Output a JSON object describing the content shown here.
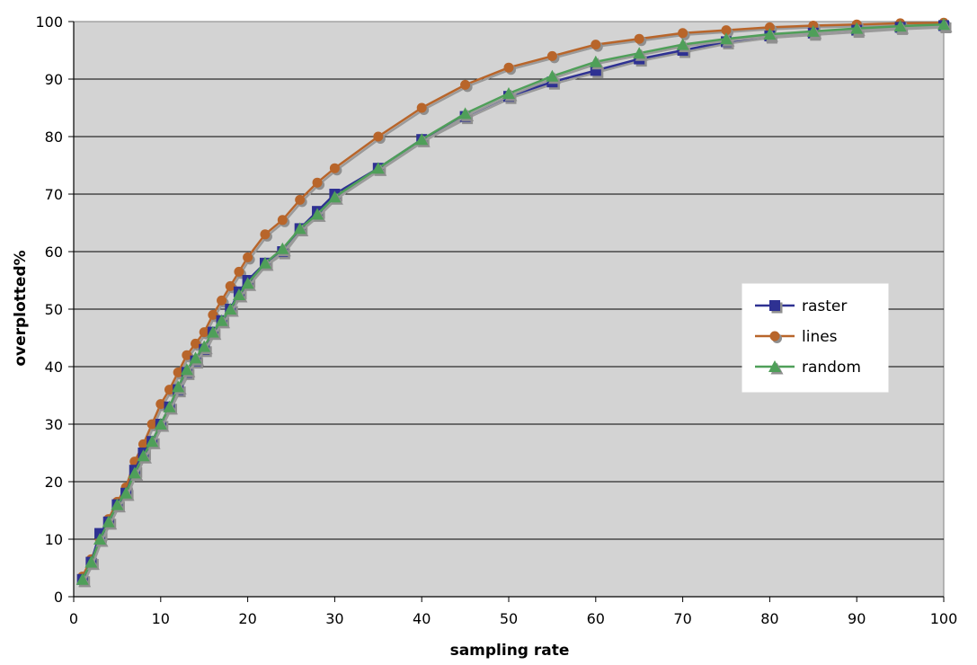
{
  "chart_data": {
    "type": "line",
    "title": "",
    "xlabel": "sampling rate",
    "ylabel": "overplotted%",
    "xlim": [
      0,
      100
    ],
    "ylim": [
      0,
      100
    ],
    "x_ticks": [
      "0",
      "10",
      "20",
      "30",
      "40",
      "50",
      "60",
      "70",
      "80",
      "90",
      "100"
    ],
    "y_ticks": [
      "0",
      "10",
      "20",
      "30",
      "40",
      "50",
      "60",
      "70",
      "80",
      "90",
      "100"
    ],
    "grid": "horizontal",
    "legend_position": "right",
    "series": [
      {
        "name": "raster",
        "color": "#2e3192",
        "marker": "square",
        "x": [
          1,
          2,
          3,
          4,
          5,
          6,
          7,
          8,
          9,
          10,
          11,
          12,
          13,
          14,
          15,
          16,
          17,
          18,
          19,
          20,
          22,
          24,
          26,
          28,
          30,
          35,
          40,
          45,
          50,
          55,
          60,
          65,
          70,
          75,
          80,
          85,
          90,
          95,
          100
        ],
        "y": [
          3,
          6,
          11,
          13,
          16,
          18,
          22,
          25,
          27,
          30,
          33,
          36,
          39,
          41,
          43,
          46,
          48,
          50,
          53,
          55,
          58,
          60,
          64,
          67,
          70,
          74.5,
          79.5,
          83.5,
          87,
          89.5,
          91.5,
          93.5,
          95,
          96.5,
          97.5,
          98,
          98.5,
          99,
          99.3
        ]
      },
      {
        "name": "lines",
        "color": "#b8652a",
        "marker": "circle",
        "x": [
          1,
          2,
          3,
          4,
          5,
          6,
          7,
          8,
          9,
          10,
          11,
          12,
          13,
          14,
          15,
          16,
          17,
          18,
          19,
          20,
          22,
          24,
          26,
          28,
          30,
          35,
          40,
          45,
          50,
          55,
          60,
          65,
          70,
          75,
          80,
          85,
          90,
          95,
          100
        ],
        "y": [
          3.5,
          6.5,
          10,
          13.5,
          16.5,
          19,
          23.5,
          26.5,
          30,
          33.5,
          36,
          39,
          42,
          44,
          46,
          49,
          51.5,
          54,
          56.5,
          59,
          63,
          65.5,
          69,
          72,
          74.5,
          80,
          85,
          89,
          92,
          94,
          96,
          97,
          98,
          98.5,
          99,
          99.3,
          99.5,
          99.7,
          99.8
        ]
      },
      {
        "name": "random",
        "color": "#4f9f59",
        "marker": "triangle",
        "x": [
          1,
          2,
          3,
          4,
          5,
          6,
          7,
          8,
          9,
          10,
          11,
          12,
          13,
          14,
          15,
          16,
          17,
          18,
          19,
          20,
          22,
          24,
          26,
          28,
          30,
          35,
          40,
          45,
          50,
          55,
          60,
          65,
          70,
          75,
          80,
          85,
          90,
          95,
          100
        ],
        "y": [
          3,
          6,
          10,
          13,
          16,
          18,
          21.5,
          24.5,
          27,
          30,
          33,
          36.5,
          39.5,
          41.5,
          43.5,
          46,
          48,
          50,
          52.5,
          54.5,
          58,
          60.5,
          64,
          66.5,
          69.5,
          74.5,
          79.5,
          84,
          87.5,
          90.5,
          93,
          94.5,
          96,
          97,
          97.8,
          98.3,
          98.8,
          99.2,
          99.5
        ]
      }
    ]
  }
}
